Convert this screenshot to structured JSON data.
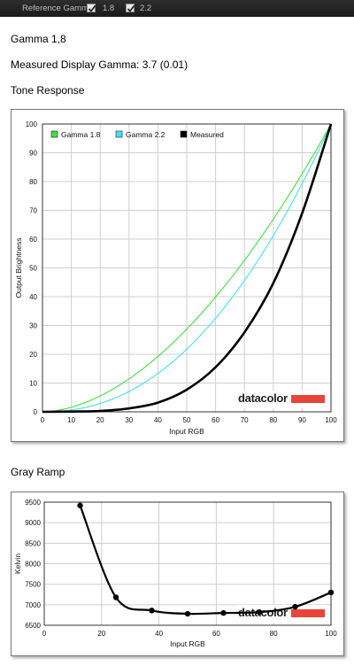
{
  "toolbar": {
    "reference_gamma_label": "Reference Gamma:",
    "options": [
      {
        "label": "1.8",
        "checked": true
      },
      {
        "label": "2.2",
        "checked": true
      }
    ]
  },
  "gamma_title": "Gamma 1,8",
  "measured_text": "Measured Display Gamma: 3.7 (0.01)",
  "tone_response_title": "Tone Response",
  "gray_ramp_title": "Gray Ramp",
  "logo_text": "datacolor",
  "colors": {
    "gamma18": "#44dd44",
    "gamma22": "#44e0ee",
    "measured": "#000000",
    "logo_bar": "#e8443a",
    "toolbar_bg": "#222222"
  },
  "chart_data": [
    {
      "type": "line",
      "title": "Tone Response",
      "xlabel": "Input RGB",
      "ylabel": "Output Brightness",
      "xlim": [
        0,
        100
      ],
      "ylim": [
        0,
        100
      ],
      "xticks": [
        0,
        10,
        20,
        30,
        40,
        50,
        60,
        70,
        80,
        90,
        100
      ],
      "yticks": [
        0,
        10,
        20,
        30,
        40,
        50,
        60,
        70,
        80,
        90,
        100
      ],
      "grid": true,
      "legend": "top-left",
      "series": [
        {
          "name": "Gamma 1.8",
          "color": "#44dd44",
          "gamma": 1.8,
          "x": [
            0,
            10,
            20,
            30,
            40,
            50,
            60,
            70,
            80,
            90,
            100
          ],
          "y": [
            0,
            1.6,
            5.5,
            11.5,
            19.2,
            28.7,
            39.9,
            52.6,
            66.9,
            82.7,
            100
          ]
        },
        {
          "name": "Gamma 2.2",
          "color": "#44e0ee",
          "gamma": 2.2,
          "x": [
            0,
            10,
            20,
            30,
            40,
            50,
            60,
            70,
            80,
            90,
            100
          ],
          "y": [
            0,
            0.6,
            2.9,
            7.1,
            13.3,
            21.8,
            32.5,
            45.6,
            61.2,
            79.3,
            100
          ]
        },
        {
          "name": "Measured",
          "color": "#000000",
          "x": [
            0,
            10,
            20,
            30,
            40,
            50,
            60,
            70,
            80,
            90,
            100
          ],
          "y": [
            0,
            0.1,
            0.3,
            1.2,
            3.2,
            7.7,
            15.5,
            27.6,
            44.7,
            69,
            100
          ]
        }
      ]
    },
    {
      "type": "line",
      "title": "Gray Ramp",
      "xlabel": "Input RGB",
      "ylabel": "Kelvin",
      "xlim": [
        0,
        100
      ],
      "ylim": [
        6500,
        9500
      ],
      "xticks": [
        0,
        20,
        40,
        60,
        80,
        100
      ],
      "yticks": [
        6500,
        7000,
        7500,
        8000,
        8500,
        9000,
        9500
      ],
      "grid": true,
      "series": [
        {
          "name": "",
          "x": [
            12.5,
            25,
            37.5,
            50,
            62.5,
            75,
            87.5,
            100
          ],
          "y": [
            9420,
            7180,
            6860,
            6780,
            6800,
            6820,
            6950,
            7300
          ]
        }
      ]
    }
  ]
}
